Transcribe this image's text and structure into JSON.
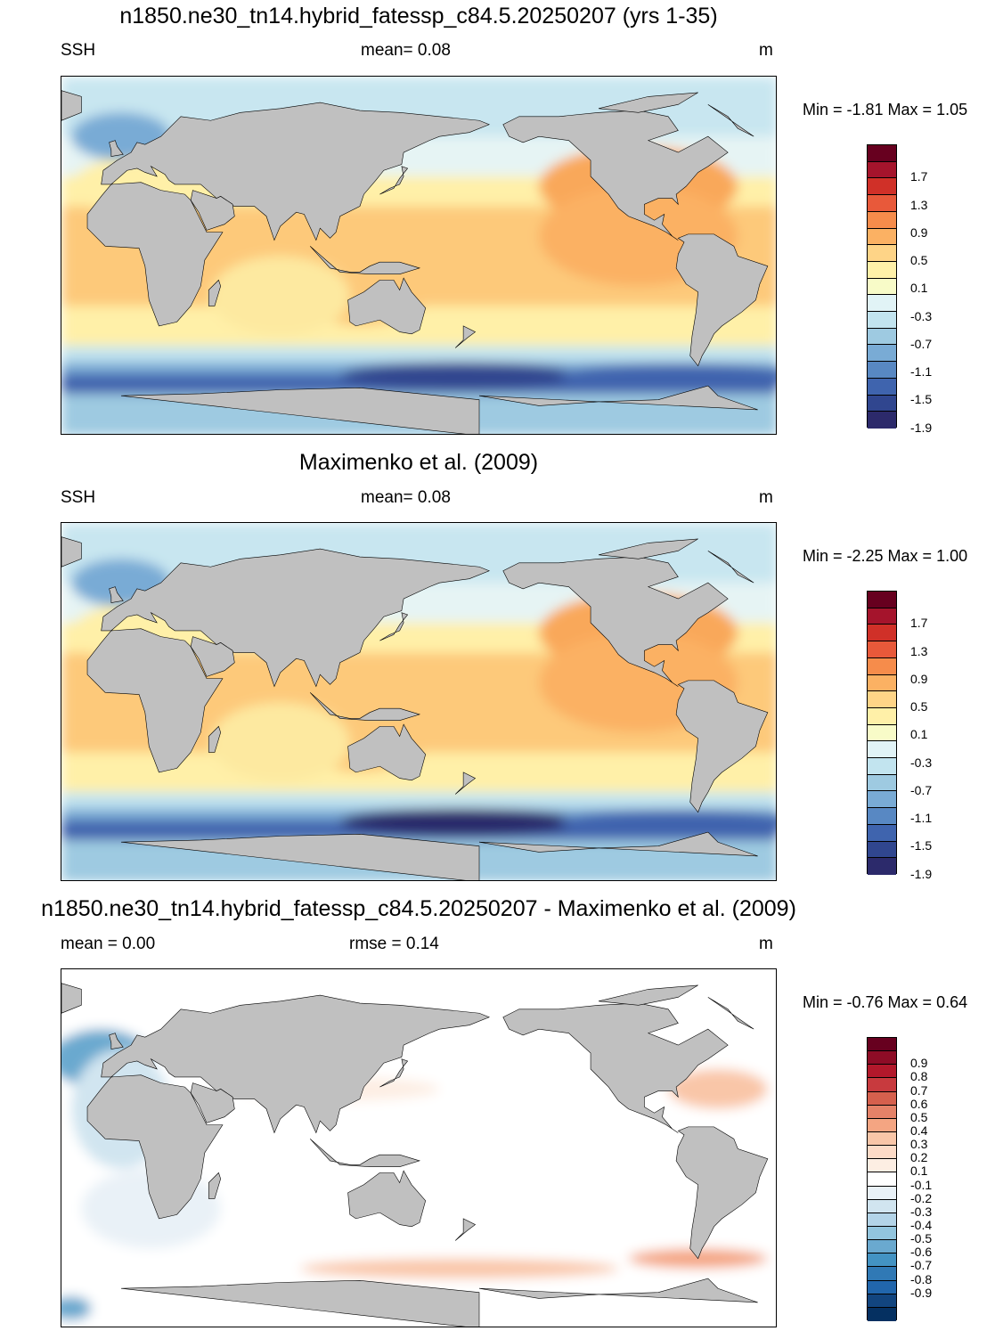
{
  "panels": [
    {
      "title": "n1850.ne30_tn14.hybrid_fatessp_c84.5.20250207 (yrs 1-35)",
      "left_label": "SSH",
      "center_label": "mean=   0.08",
      "right_label": "m",
      "minmax": "Min =  -1.81 Max =   1.05",
      "kind": "ssh",
      "colorbar": {
        "labels": [
          "1.7",
          "1.3",
          "0.9",
          "0.5",
          "0.1",
          "-0.3",
          "-0.7",
          "-1.1",
          "-1.5",
          "-1.9"
        ],
        "colors": [
          "#67001f",
          "#a5142c",
          "#d03028",
          "#e8593a",
          "#f68c4b",
          "#fbb163",
          "#fed487",
          "#fff0a8",
          "#f8fbc8",
          "#e1f3f6",
          "#c2e4ef",
          "#9ecae1",
          "#79abd5",
          "#5888c3",
          "#3f64ae",
          "#30468f",
          "#2c2a6b"
        ]
      }
    },
    {
      "title": "Maximenko et al. (2009)",
      "left_label": "SSH",
      "center_label": "mean=   0.08",
      "right_label": "m",
      "minmax": "Min =  -2.25 Max =   1.00",
      "kind": "ssh",
      "colorbar": {
        "labels": [
          "1.7",
          "1.3",
          "0.9",
          "0.5",
          "0.1",
          "-0.3",
          "-0.7",
          "-1.1",
          "-1.5",
          "-1.9"
        ],
        "colors": [
          "#67001f",
          "#a5142c",
          "#d03028",
          "#e8593a",
          "#f68c4b",
          "#fbb163",
          "#fed487",
          "#fff0a8",
          "#f8fbc8",
          "#e1f3f6",
          "#c2e4ef",
          "#9ecae1",
          "#79abd5",
          "#5888c3",
          "#3f64ae",
          "#30468f",
          "#2c2a6b"
        ]
      }
    },
    {
      "title": "n1850.ne30_tn14.hybrid_fatessp_c84.5.20250207 - Maximenko et al. (2009)",
      "left_label": "mean =   0.00",
      "center_label": "rmse =   0.14",
      "right_label": "m",
      "minmax": "Min =  -0.76 Max =   0.64",
      "kind": "diff",
      "colorbar": {
        "labels": [
          "0.9",
          "0.8",
          "0.7",
          "0.6",
          "0.5",
          "0.4",
          "0.3",
          "0.2",
          "0.1",
          "-0.1",
          "-0.2",
          "-0.3",
          "-0.4",
          "-0.5",
          "-0.6",
          "-0.7",
          "-0.8",
          "-0.9"
        ],
        "colors": [
          "#67001f",
          "#8e0c26",
          "#b2182b",
          "#c83a3e",
          "#d6604d",
          "#e58268",
          "#f4a582",
          "#f9c6a8",
          "#fddbc7",
          "#fdeee3",
          "#ffffff",
          "#e9f1f7",
          "#d1e5f0",
          "#b3d4e8",
          "#92c5de",
          "#6aa9cf",
          "#4393c3",
          "#3079b5",
          "#2166ac",
          "#12457f",
          "#053061"
        ]
      }
    }
  ]
}
